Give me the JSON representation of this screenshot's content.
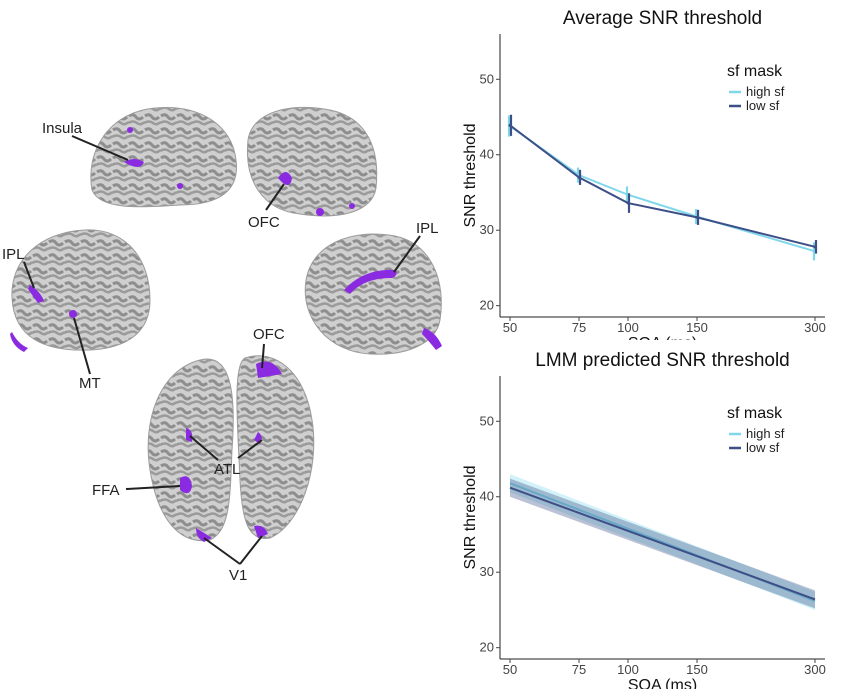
{
  "brain_labels": {
    "insula": "Insula",
    "ofc_top": "OFC",
    "ipl_left": "IPL",
    "ipl_right": "IPL",
    "mt": "MT",
    "ofc_bottom": "OFC",
    "atl": "ATL",
    "ffa": "FFA",
    "v1": "V1"
  },
  "colors": {
    "high_sf": "#7fd8ea",
    "low_sf": "#3d4f86",
    "activation": "#8a2be2",
    "cortex": "#c9c9c9"
  },
  "chart_data": [
    {
      "type": "line",
      "title": "Average SNR threshold",
      "xlabel": "SOA (ms)",
      "ylabel": "SNR threshold",
      "x_scale": "log",
      "x": [
        50,
        75,
        100,
        150,
        300
      ],
      "xticks": [
        "50",
        "75",
        "100",
        "150",
        "300"
      ],
      "ylim": [
        18.5,
        56
      ],
      "yticks": [
        20,
        30,
        40,
        50
      ],
      "legend_title": "sf mask",
      "legend_position": "top-right",
      "grid": false,
      "series": [
        {
          "name": "high sf",
          "color": "#7fd8ea",
          "values": [
            43.8,
            37.3,
            34.7,
            31.8,
            27.2
          ],
          "err": [
            1.4,
            1.0,
            1.1,
            1.0,
            1.2
          ]
        },
        {
          "name": "low sf",
          "color": "#3d4f86",
          "values": [
            43.9,
            37.0,
            33.6,
            31.7,
            27.8
          ],
          "err": [
            1.4,
            1.0,
            1.3,
            1.0,
            0.9
          ]
        }
      ]
    },
    {
      "type": "line",
      "title": "LMM predicted SNR threshold",
      "xlabel": "SOA (ms)",
      "ylabel": "SNR threshold",
      "x_scale": "log",
      "x": [
        50,
        300
      ],
      "xticks": [
        "50",
        "75",
        "100",
        "150",
        "300"
      ],
      "ylim": [
        18.5,
        56
      ],
      "yticks": [
        20,
        30,
        40,
        50
      ],
      "legend_title": "sf mask",
      "legend_position": "top-right",
      "grid": false,
      "series": [
        {
          "name": "high sf",
          "color": "#7fd8ea",
          "values": [
            41.8,
            26.2
          ],
          "ci": [
            1.2,
            1.2
          ]
        },
        {
          "name": "low sf",
          "color": "#3d4f86",
          "values": [
            41.2,
            26.4
          ],
          "ci": [
            1.2,
            1.2
          ]
        }
      ]
    }
  ]
}
